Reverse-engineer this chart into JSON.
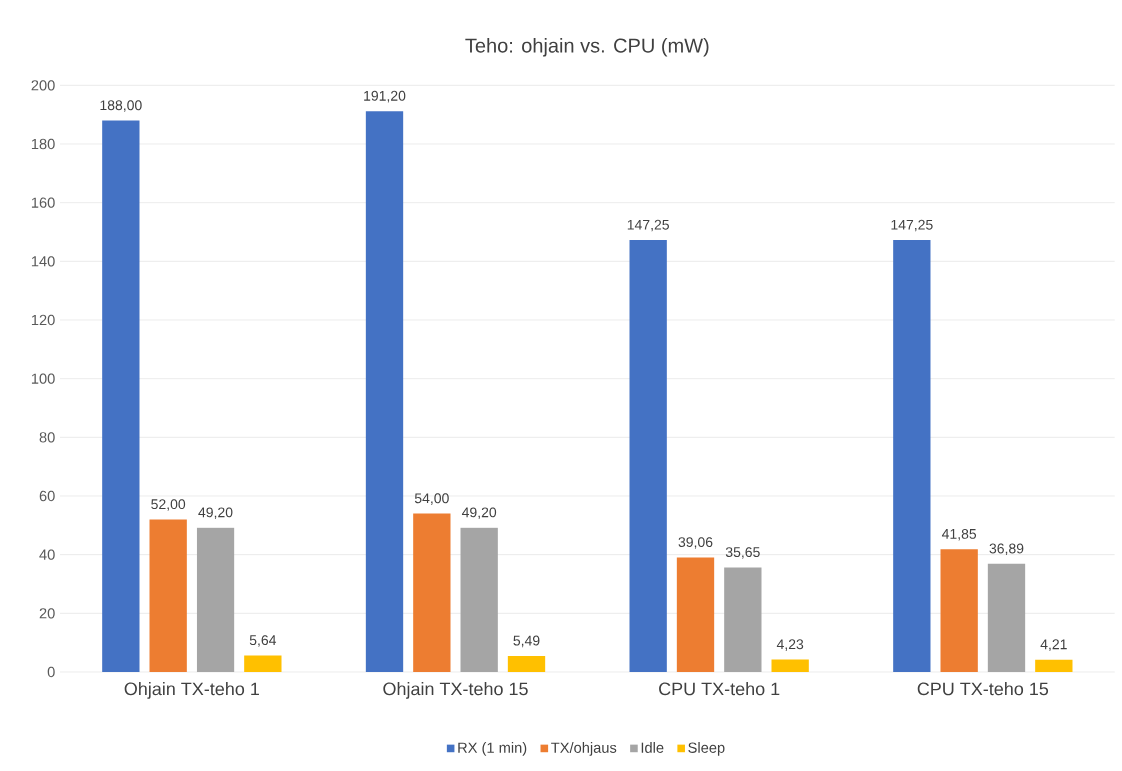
{
  "chart_data": {
    "type": "bar",
    "title": "Teho: ohjain vs. CPU (mW)",
    "categories": [
      "Ohjain TX-teho 1",
      "Ohjain TX-teho 15",
      "CPU TX-teho 1",
      "CPU TX-teho 15"
    ],
    "series": [
      {
        "name": "RX (1 min)",
        "color": "#4472c4",
        "values": [
          188.0,
          191.2,
          147.25,
          147.25
        ],
        "value_labels": [
          "188,00",
          "191,20",
          "147,25",
          "147,25"
        ]
      },
      {
        "name": "TX/ohjaus",
        "color": "#ed7d31",
        "values": [
          52.0,
          54.0,
          39.06,
          41.85
        ],
        "value_labels": [
          "52,00",
          "54,00",
          "39,06",
          "41,85"
        ]
      },
      {
        "name": "Idle",
        "color": "#a5a5a5",
        "values": [
          49.2,
          49.2,
          35.65,
          36.89
        ],
        "value_labels": [
          "49,20",
          "49,20",
          "35,65",
          "36,89"
        ]
      },
      {
        "name": "Sleep",
        "color": "#ffc000",
        "values": [
          5.64,
          5.49,
          4.23,
          4.21
        ],
        "value_labels": [
          "5,64",
          "5,49",
          "4,23",
          "4,21"
        ]
      }
    ],
    "ylim": [
      0,
      200
    ],
    "yticks": [
      0,
      20,
      40,
      60,
      80,
      100,
      120,
      140,
      160,
      180,
      200
    ],
    "grid": "y",
    "legend": "bottom"
  }
}
